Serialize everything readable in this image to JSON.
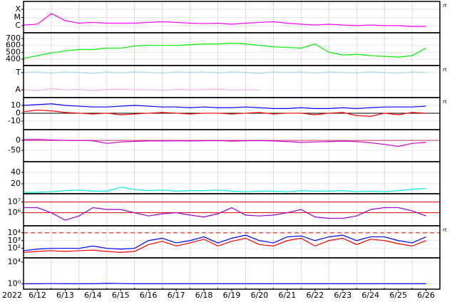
{
  "chart_data": [
    {
      "type": "line",
      "log": true,
      "ylim": [
        1.35e-07,
        0.0009
      ],
      "note": "rt",
      "yticks": [
        {
          "value": 0.0001,
          "label": "X"
        },
        {
          "value": 1e-05,
          "label": "M"
        },
        {
          "value": 1e-06,
          "label": "C"
        }
      ],
      "series": [
        {
          "color": "#ff00ff",
          "values": [
            1.2e-06,
            1.5e-06,
            3e-05,
            4e-06,
            2e-06,
            2.5e-06,
            2e-06,
            2e-06,
            2e-06,
            2.5e-06,
            3e-06,
            2.5e-06,
            2e-06,
            1.8e-06,
            2e-06,
            1.5e-06,
            2e-06,
            2.5e-06,
            3e-06,
            2e-06,
            1.5e-06,
            1.2e-06,
            1.5e-06,
            1.2e-06,
            1e-06,
            1.2e-06,
            1e-06,
            1e-06,
            8e-07,
            8e-07
          ]
        }
      ]
    },
    {
      "type": "line",
      "log": false,
      "ylim": [
        307,
        783
      ],
      "yticks": [
        700,
        600,
        500,
        400
      ],
      "series": [
        {
          "color": "#00ee00",
          "values": [
            410,
            450,
            490,
            520,
            540,
            540,
            560,
            560,
            590,
            600,
            600,
            600,
            610,
            620,
            620,
            630,
            620,
            600,
            580,
            570,
            560,
            620,
            500,
            460,
            470,
            450,
            440,
            430,
            450,
            560
          ]
        }
      ]
    },
    {
      "type": "line",
      "log": false,
      "ylim": [
        0,
        1
      ],
      "note": "rt",
      "yticks": [
        {
          "value": 0.78,
          "label": "T"
        },
        {
          "value": 0.24,
          "label": "A"
        }
      ],
      "series": [
        {
          "color": "#aad8f0",
          "values": [
            0.78,
            0.8,
            0.76,
            0.8,
            0.78,
            0.75,
            0.8,
            0.77,
            0.8,
            0.78,
            0.76,
            0.8,
            0.78,
            0.8,
            0.77,
            0.8,
            0.78,
            0.75,
            0.8,
            0.78,
            0.8,
            0.76,
            0.8,
            0.78,
            0.77,
            0.8,
            0.78,
            0.76,
            0.8,
            0.78
          ]
        },
        {
          "color": "#f5b5e8",
          "values": [
            0.25,
            0.22,
            0.28,
            0.24,
            0.26,
            0.22,
            0.25,
            0.27,
            0.24,
            0.25,
            0.22,
            0.26,
            0.24,
            0.25,
            0.27,
            0.23,
            0.25,
            0.24,
            null,
            null,
            null,
            null,
            null,
            null,
            null,
            null,
            null,
            null,
            null,
            null
          ]
        }
      ]
    },
    {
      "type": "line",
      "log": false,
      "ylim": [
        -21,
        20
      ],
      "yticks": [
        10,
        0,
        -10
      ],
      "note": "rt",
      "thresholds": [
        0
      ],
      "threshold_color": "#000000",
      "series": [
        {
          "color": "#0000ff",
          "values": [
            10,
            11,
            12,
            10,
            9,
            8,
            8,
            9,
            10,
            9,
            8,
            8,
            7,
            8,
            7,
            7,
            8,
            7,
            6,
            6,
            7,
            6,
            6,
            7,
            6,
            7,
            8,
            8,
            8,
            9
          ]
        },
        {
          "color": "#ff0000",
          "values": [
            2,
            4,
            3,
            1,
            0,
            -1,
            0,
            -2,
            -1,
            0,
            1,
            0,
            -1,
            0,
            0,
            -1,
            0,
            1,
            -1,
            0,
            0,
            -2,
            0,
            1,
            -3,
            -4,
            0,
            -2,
            1,
            0
          ]
        }
      ]
    },
    {
      "type": "line",
      "log": false,
      "ylim": [
        -107,
        54
      ],
      "yticks": [
        0,
        -50
      ],
      "thresholds": [
        0
      ],
      "threshold_color": "#cc3366",
      "series": [
        {
          "color": "#cc00cc",
          "values": [
            4,
            5,
            2,
            0,
            0,
            -2,
            -15,
            -8,
            -5,
            -3,
            -3,
            -2,
            -3,
            -2,
            -1,
            -4,
            -2,
            -1,
            -3,
            -6,
            -10,
            -8,
            -6,
            -4,
            -6,
            -12,
            -20,
            -30,
            -15,
            -10
          ]
        }
      ]
    },
    {
      "type": "line",
      "log": false,
      "ylim": [
        2.5,
        58.8
      ],
      "yticks": [
        40,
        20
      ],
      "series": [
        {
          "color": "#00e8e8",
          "values": [
            5,
            5,
            6,
            8,
            9,
            7,
            7,
            14,
            10,
            8,
            9,
            7,
            8,
            8,
            9,
            7,
            6,
            7,
            7,
            6,
            8,
            7,
            7,
            8,
            6,
            7,
            6,
            8,
            10,
            12
          ]
        }
      ]
    },
    {
      "type": "line",
      "log": true,
      "ylim": [
        60000,
        60000000
      ],
      "thresholds": [
        10000000,
        1000000
      ],
      "threshold_color": "#dd0000",
      "yticks": [
        {
          "value": 10000000,
          "label": "10⁷"
        },
        {
          "value": 1000000,
          "label": "10⁶"
        }
      ],
      "series": [
        {
          "color": "#9900cc",
          "values": [
            3000000.0,
            3000000.0,
            1000000.0,
            200000.0,
            500000.0,
            3000000.0,
            2000000.0,
            2000000.0,
            1000000.0,
            500000.0,
            800000.0,
            1000000.0,
            600000.0,
            400000.0,
            800000.0,
            3000000.0,
            600000.0,
            500000.0,
            600000.0,
            1000000.0,
            2000000.0,
            400000.0,
            300000.0,
            300000.0,
            500000.0,
            2000000.0,
            3000000.0,
            3000000.0,
            1500000.0,
            500000.0
          ]
        }
      ]
    },
    {
      "type": "line",
      "log": true,
      "ylim": [
        6,
        80000
      ],
      "note": "rt",
      "thresholds": [
        10000
      ],
      "threshold_color": "#dd0000",
      "threshold_dash": true,
      "yticks": [
        {
          "value": 10000,
          "label": "10⁴"
        },
        {
          "value": 1000,
          "label": "10³"
        },
        {
          "value": 100,
          "label": "10²"
        }
      ],
      "series": [
        {
          "color": "#0000ff",
          "values": [
            50,
            80,
            100,
            100,
            100,
            200,
            100,
            80,
            100,
            1000,
            2000,
            500,
            1000,
            3000,
            500,
            2000,
            5000,
            1000,
            500,
            3000,
            4000,
            1000,
            3000,
            5000,
            1000,
            3000,
            3000,
            1000,
            500,
            3000
          ]
        },
        {
          "color": "#ff0000",
          "values": [
            30,
            40,
            50,
            40,
            50,
            60,
            40,
            30,
            40,
            300,
            800,
            200,
            500,
            1500,
            200,
            800,
            2000,
            300,
            200,
            1000,
            2000,
            200,
            1000,
            2000,
            300,
            1500,
            1000,
            400,
            200,
            1000
          ]
        }
      ]
    },
    {
      "type": "line",
      "log": true,
      "ylim": [
        0.1,
        60000
      ],
      "xlabel": "2022",
      "categories": [
        null,
        "6/12",
        null,
        "6/13",
        null,
        "6/14",
        null,
        "6/15",
        null,
        "6/16",
        null,
        "6/17",
        null,
        "6/18",
        null,
        "6/19",
        null,
        "6/20",
        null,
        "6/21",
        null,
        "6/22",
        null,
        "6/23",
        null,
        "6/24",
        null,
        "6/25",
        null,
        "6/26"
      ],
      "yticks": [
        {
          "value": 10000,
          "label": "10⁴"
        },
        {
          "value": 1,
          "label": "10⁰"
        }
      ],
      "series": [
        {
          "color": "#0000ff",
          "values": [
            1,
            1,
            1.1,
            1,
            1,
            1,
            1.2,
            1.1,
            1,
            1,
            1,
            1,
            1,
            1,
            1,
            1,
            1,
            1,
            1,
            1,
            1,
            1,
            1,
            1,
            1,
            1,
            1,
            1,
            1,
            1
          ]
        }
      ]
    }
  ]
}
